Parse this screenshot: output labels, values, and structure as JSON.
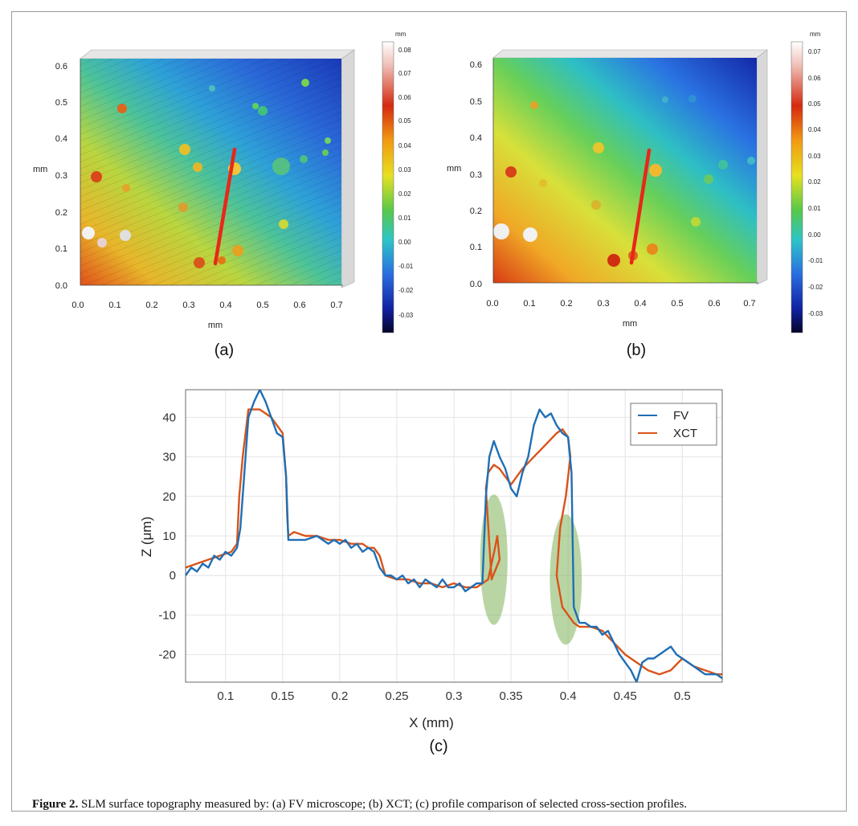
{
  "caption": {
    "label": "Figure 2.",
    "text": " SLM surface topography measured by: (a) FV microscope; (b) XCT; (c) profile comparison of selected cross-section profiles."
  },
  "panel_a": {
    "label": "(a)",
    "x_label": "mm",
    "y_label": "mm",
    "x_ticks": [
      "0.0",
      "0.1",
      "0.2",
      "0.3",
      "0.4",
      "0.5",
      "0.6",
      "0.7"
    ],
    "y_ticks": [
      "0.0",
      "0.1",
      "0.2",
      "0.3",
      "0.4",
      "0.5",
      "0.6"
    ],
    "colorbar_unit": "mm",
    "colorbar_ticks": [
      "0.08",
      "0.07",
      "0.06",
      "0.05",
      "0.04",
      "0.03",
      "0.02",
      "0.01",
      "0.00",
      "-0.01",
      "-0.02",
      "-0.03"
    ]
  },
  "panel_b": {
    "label": "(b)",
    "x_label": "mm",
    "y_label": "mm",
    "x_ticks": [
      "0.0",
      "0.1",
      "0.2",
      "0.3",
      "0.4",
      "0.5",
      "0.6",
      "0.7"
    ],
    "y_ticks": [
      "0.0",
      "0.1",
      "0.2",
      "0.3",
      "0.4",
      "0.5",
      "0.6"
    ],
    "colorbar_unit": "mm",
    "colorbar_ticks": [
      "0.07",
      "0.06",
      "0.05",
      "0.04",
      "0.03",
      "0.02",
      "0.01",
      "0.00",
      "-0.01",
      "-0.02",
      "-0.03"
    ]
  },
  "colors": {
    "fv": "#1f6fb5",
    "xct": "#d95319",
    "highlight": "#7fb35a",
    "section_line": "#e8271a"
  },
  "chart_data": {
    "type": "line",
    "panel_label": "(c)",
    "xlabel": "X (mm)",
    "ylabel": "Z (μm)",
    "xlim": [
      0.065,
      0.535
    ],
    "ylim": [
      -27,
      47
    ],
    "x_ticks": [
      0.1,
      0.15,
      0.2,
      0.25,
      0.3,
      0.35,
      0.4,
      0.45,
      0.5
    ],
    "x_tick_labels": [
      "0.1",
      "0.15",
      "0.2",
      "0.25",
      "0.3",
      "0.35",
      "0.4",
      "0.45",
      "0.5"
    ],
    "y_ticks": [
      -20,
      -10,
      0,
      10,
      20,
      30,
      40
    ],
    "y_tick_labels": [
      "-20",
      "-10",
      "0",
      "10",
      "20",
      "30",
      "40"
    ],
    "grid": true,
    "legend": "top-right",
    "series": [
      {
        "name": "FV",
        "x": [
          0.065,
          0.07,
          0.075,
          0.08,
          0.085,
          0.09,
          0.095,
          0.1,
          0.105,
          0.11,
          0.113,
          0.116,
          0.12,
          0.125,
          0.13,
          0.135,
          0.14,
          0.145,
          0.15,
          0.153,
          0.155,
          0.16,
          0.17,
          0.18,
          0.19,
          0.195,
          0.2,
          0.205,
          0.21,
          0.215,
          0.22,
          0.225,
          0.23,
          0.235,
          0.24,
          0.245,
          0.25,
          0.255,
          0.26,
          0.265,
          0.27,
          0.275,
          0.28,
          0.285,
          0.29,
          0.295,
          0.3,
          0.305,
          0.31,
          0.315,
          0.32,
          0.325,
          0.328,
          0.331,
          0.335,
          0.34,
          0.345,
          0.35,
          0.355,
          0.36,
          0.365,
          0.37,
          0.375,
          0.38,
          0.385,
          0.39,
          0.395,
          0.4,
          0.403,
          0.405,
          0.41,
          0.415,
          0.42,
          0.425,
          0.43,
          0.435,
          0.44,
          0.445,
          0.45,
          0.455,
          0.46,
          0.465,
          0.47,
          0.475,
          0.48,
          0.485,
          0.49,
          0.495,
          0.5,
          0.505,
          0.51,
          0.515,
          0.52,
          0.525,
          0.53,
          0.535
        ],
        "y": [
          0,
          2,
          1,
          3,
          2,
          5,
          4,
          6,
          5,
          7,
          12,
          24,
          40,
          44,
          47,
          44,
          40,
          36,
          35,
          25,
          9,
          9,
          9,
          10,
          8,
          9,
          8,
          9,
          7,
          8,
          6,
          7,
          6,
          2,
          0,
          0,
          -1,
          0,
          -2,
          -1,
          -3,
          -1,
          -2,
          -3,
          -1,
          -3,
          -3,
          -2,
          -4,
          -3,
          -2,
          -2,
          20,
          30,
          34,
          30,
          27,
          22,
          20,
          26,
          30,
          38,
          42,
          40,
          41,
          38,
          36,
          35,
          26,
          -8,
          -12,
          -12,
          -13,
          -13,
          -15,
          -14,
          -17,
          -20,
          -22,
          -24,
          -27,
          -22,
          -21,
          -21,
          -20,
          -19,
          -18,
          -20,
          -21,
          -22,
          -23,
          -24,
          -25,
          -25,
          -25,
          -26
        ]
      },
      {
        "name": "XCT",
        "x": [
          0.065,
          0.075,
          0.085,
          0.095,
          0.105,
          0.11,
          0.112,
          0.115,
          0.12,
          0.13,
          0.14,
          0.15,
          0.153,
          0.154,
          0.155,
          0.16,
          0.17,
          0.18,
          0.19,
          0.2,
          0.21,
          0.22,
          0.225,
          0.23,
          0.235,
          0.24,
          0.25,
          0.26,
          0.27,
          0.28,
          0.29,
          0.3,
          0.31,
          0.32,
          0.325,
          0.33,
          0.333,
          0.336,
          0.338,
          0.34,
          0.333,
          0.328,
          0.33,
          0.335,
          0.34,
          0.35,
          0.36,
          0.37,
          0.38,
          0.39,
          0.395,
          0.4,
          0.402,
          0.398,
          0.393,
          0.39,
          0.395,
          0.405,
          0.41,
          0.42,
          0.43,
          0.44,
          0.45,
          0.46,
          0.47,
          0.48,
          0.49,
          0.5,
          0.51,
          0.52,
          0.53,
          0.535
        ],
        "y": [
          2,
          3,
          4,
          5,
          6,
          8,
          20,
          30,
          42,
          42,
          40,
          36,
          25,
          15,
          10,
          11,
          10,
          10,
          9,
          9,
          8,
          8,
          7,
          7,
          5,
          0,
          -1,
          -1,
          -2,
          -2,
          -3,
          -2,
          -3,
          -3,
          -2,
          -1,
          3,
          7,
          10,
          4,
          -1,
          22,
          26,
          28,
          27,
          23,
          27,
          30,
          33,
          36,
          37,
          35,
          30,
          20,
          12,
          0,
          -8,
          -12,
          -13,
          -13,
          -14,
          -17,
          -20,
          -22,
          -24,
          -25,
          -24,
          -21,
          -23,
          -24,
          -25,
          -25
        ]
      }
    ],
    "highlights": [
      {
        "cx": 0.335,
        "cy": 4,
        "rx_mm": 0.012,
        "ry_um": 16.5
      },
      {
        "cx": 0.398,
        "cy": -1,
        "rx_mm": 0.014,
        "ry_um": 16.5
      }
    ]
  }
}
